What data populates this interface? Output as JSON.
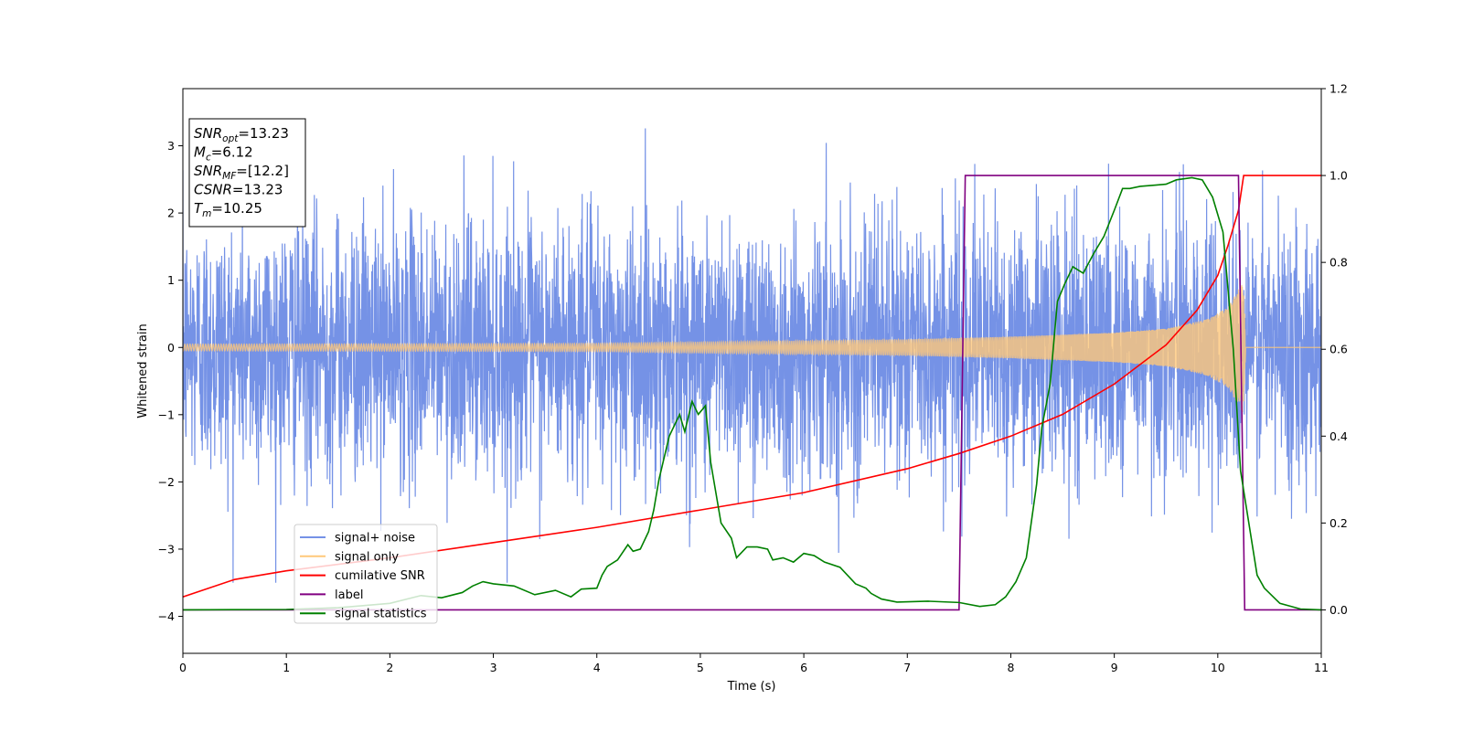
{
  "chart_data": {
    "type": "line",
    "xlabel": "Time (s)",
    "ylabel": "Whitened strain",
    "xlim": [
      0,
      11
    ],
    "ylim_left": [
      -4.55,
      3.85
    ],
    "ylim_right": [
      -0.1,
      1.2
    ],
    "x_ticks": [
      "0",
      "1",
      "2",
      "3",
      "4",
      "5",
      "6",
      "7",
      "8",
      "9",
      "10",
      "11"
    ],
    "y_left_ticks": [
      "3",
      "2",
      "1",
      "0",
      "−1",
      "−2",
      "−3",
      "−4"
    ],
    "y_right_ticks": [
      "1.2",
      "1.0",
      "0.8",
      "0.6",
      "0.4",
      "0.2",
      "0.0"
    ],
    "legend_position": "lower-left",
    "grid": false,
    "info_box": [
      {
        "base": "SNR",
        "sub": "opt",
        "value": "=13.23"
      },
      {
        "base": "M",
        "sub": "c",
        "value": "=6.12"
      },
      {
        "base": "SNR",
        "sub": "MF",
        "value": "=[12.2]"
      },
      {
        "base": "CSNR",
        "sub": "",
        "value": "=13.23"
      },
      {
        "base": "T",
        "sub": "m",
        "value": "=10.25"
      }
    ],
    "noise_params": {
      "n_points": 4400,
      "std": 0.95,
      "peak": 3.5,
      "t_merger": 10.25
    },
    "series": [
      {
        "name": "signal+ noise",
        "axis": "left",
        "color": "#7592e6",
        "kind": "noise"
      },
      {
        "name": "signal only",
        "axis": "left",
        "color": "#ffc87a",
        "kind": "chirp",
        "amplitude_points": [
          [
            0,
            0.05
          ],
          [
            4,
            0.06
          ],
          [
            7,
            0.12
          ],
          [
            8,
            0.16
          ],
          [
            9,
            0.22
          ],
          [
            9.5,
            0.28
          ],
          [
            9.9,
            0.42
          ],
          [
            10.1,
            0.6
          ],
          [
            10.25,
            1.0
          ],
          [
            10.27,
            0
          ],
          [
            11,
            0
          ]
        ]
      },
      {
        "name": "cumilative SNR",
        "axis": "right",
        "color": "#ff0000",
        "x": [
          0,
          0.5,
          1,
          2,
          3,
          4,
          5,
          6,
          7,
          7.5,
          8,
          8.5,
          9,
          9.5,
          9.8,
          10,
          10.1,
          10.2,
          10.25,
          10.28,
          11
        ],
        "y": [
          0.03,
          0.07,
          0.09,
          0.12,
          0.155,
          0.19,
          0.23,
          0.27,
          0.325,
          0.36,
          0.4,
          0.45,
          0.52,
          0.61,
          0.69,
          0.77,
          0.84,
          0.92,
          1.0,
          1.0,
          1.0
        ]
      },
      {
        "name": "label",
        "axis": "right",
        "color": "#800080",
        "x": [
          0,
          7.5,
          7.56,
          10.2,
          10.26,
          11
        ],
        "y": [
          0.0,
          0.0,
          1.0,
          1.0,
          0.0,
          0.0
        ]
      },
      {
        "name": "signal statistics",
        "axis": "right",
        "color": "#008000",
        "x": [
          0,
          1,
          1.5,
          2,
          2.2,
          2.3,
          2.5,
          2.7,
          2.8,
          2.9,
          3.0,
          3.2,
          3.4,
          3.6,
          3.75,
          3.85,
          4.0,
          4.05,
          4.1,
          4.2,
          4.3,
          4.35,
          4.42,
          4.5,
          4.55,
          4.6,
          4.7,
          4.8,
          4.85,
          4.92,
          4.98,
          5.05,
          5.1,
          5.2,
          5.3,
          5.35,
          5.45,
          5.55,
          5.65,
          5.7,
          5.8,
          5.9,
          6.0,
          6.1,
          6.2,
          6.35,
          6.5,
          6.6,
          6.65,
          6.75,
          6.9,
          7.2,
          7.5,
          7.7,
          7.85,
          7.95,
          8.05,
          8.15,
          8.25,
          8.3,
          8.38,
          8.45,
          8.52,
          8.6,
          8.7,
          8.8,
          8.9,
          9.0,
          9.08,
          9.15,
          9.25,
          9.4,
          9.5,
          9.6,
          9.75,
          9.85,
          9.95,
          10.05,
          10.15,
          10.22,
          10.3,
          10.38,
          10.45,
          10.6,
          10.8,
          11
        ],
        "y": [
          0.0,
          0.001,
          0.005,
          0.015,
          0.027,
          0.033,
          0.028,
          0.04,
          0.055,
          0.065,
          0.06,
          0.055,
          0.035,
          0.045,
          0.03,
          0.048,
          0.05,
          0.08,
          0.1,
          0.115,
          0.15,
          0.135,
          0.14,
          0.18,
          0.23,
          0.3,
          0.4,
          0.45,
          0.41,
          0.48,
          0.45,
          0.47,
          0.34,
          0.2,
          0.165,
          0.12,
          0.145,
          0.145,
          0.14,
          0.115,
          0.12,
          0.11,
          0.13,
          0.125,
          0.11,
          0.098,
          0.06,
          0.05,
          0.038,
          0.025,
          0.018,
          0.02,
          0.017,
          0.008,
          0.012,
          0.03,
          0.065,
          0.12,
          0.29,
          0.42,
          0.52,
          0.71,
          0.75,
          0.79,
          0.775,
          0.82,
          0.86,
          0.92,
          0.97,
          0.97,
          0.975,
          0.978,
          0.98,
          0.99,
          0.995,
          0.99,
          0.95,
          0.87,
          0.6,
          0.32,
          0.2,
          0.08,
          0.05,
          0.015,
          0.002,
          0.0
        ]
      }
    ]
  }
}
